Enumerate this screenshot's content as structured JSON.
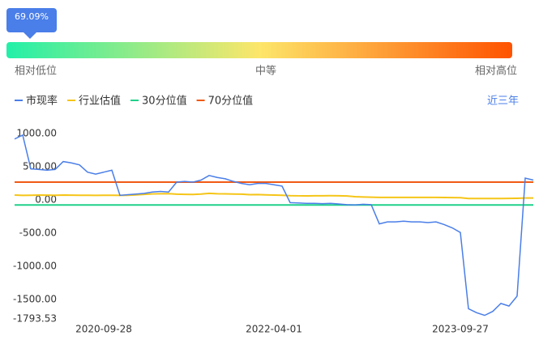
{
  "gauge": {
    "pointer_label": "69.09%",
    "low": "相对低位",
    "mid": "中等",
    "high": "相对高位"
  },
  "range_button": "近三年",
  "chart_data": {
    "type": "line",
    "categories": [
      null,
      null,
      null,
      null,
      null,
      null,
      null,
      null,
      null,
      null,
      null,
      "2020-09-28",
      null,
      null,
      null,
      null,
      null,
      null,
      null,
      null,
      null,
      null,
      null,
      null,
      null,
      null,
      null,
      null,
      null,
      null,
      null,
      null,
      "2022-04-01",
      null,
      null,
      null,
      null,
      null,
      null,
      null,
      null,
      null,
      null,
      null,
      null,
      null,
      null,
      null,
      null,
      null,
      null,
      null,
      null,
      null,
      null,
      "2023-09-27",
      null,
      null,
      null,
      null,
      null,
      null,
      null,
      null,
      null
    ],
    "series": [
      {
        "name": "市现率",
        "color": "#4a7ee8",
        "values": [
          920,
          980,
          470,
          460,
          450,
          460,
          580,
          560,
          530,
          420,
          390,
          420,
          450,
          70,
          80,
          90,
          100,
          120,
          130,
          120,
          270,
          280,
          270,
          300,
          370,
          340,
          320,
          280,
          250,
          230,
          250,
          250,
          230,
          210,
          -40,
          -45,
          -50,
          -50,
          -55,
          -50,
          -60,
          -70,
          -75,
          -65,
          -70,
          -360,
          -330,
          -330,
          -320,
          -330,
          -330,
          -340,
          -330,
          -370,
          -420,
          -490,
          -1640,
          -1700,
          -1740,
          -1680,
          -1560,
          -1600,
          -1450,
          330,
          300
        ]
      },
      {
        "name": "行业估值",
        "color": "#f5c518",
        "values": [
          75,
          70,
          72,
          74,
          73,
          72,
          74,
          73,
          72,
          71,
          70,
          72,
          71,
          70,
          72,
          78,
          85,
          92,
          95,
          96,
          88,
          85,
          84,
          90,
          100,
          95,
          93,
          90,
          88,
          80,
          82,
          78,
          75,
          72,
          65,
          63,
          62,
          63,
          64,
          65,
          64,
          60,
          50,
          45,
          42,
          40,
          40,
          40,
          40,
          40,
          40,
          40,
          40,
          38,
          36,
          35,
          22,
          22,
          22,
          22,
          22,
          24,
          26,
          30,
          30
        ]
      },
      {
        "name": "30分位值",
        "color": "#1fd18a",
        "values": [
          -75,
          -75,
          -75,
          -75,
          -75,
          -75,
          -75,
          -75,
          -75,
          -75,
          -75,
          -75,
          -75,
          -75,
          -75,
          -75,
          -75,
          -75,
          -75,
          -75,
          -75,
          -75,
          -75,
          -75,
          -75,
          -75,
          -75,
          -75,
          -75,
          -75,
          -75,
          -75,
          -75,
          -75,
          -75,
          -75,
          -75,
          -75,
          -75,
          -75,
          -75,
          -75,
          -75,
          -75,
          -75,
          -75,
          -75,
          -75,
          -75,
          -75,
          -75,
          -75,
          -75,
          -75,
          -75,
          -75,
          -75,
          -75,
          -75,
          -75,
          -75,
          -75,
          -75,
          -75,
          -75
        ]
      },
      {
        "name": "70分位值",
        "color": "#f05a14",
        "values": [
          270,
          270,
          270,
          270,
          270,
          270,
          270,
          270,
          270,
          270,
          270,
          270,
          270,
          270,
          270,
          270,
          270,
          270,
          270,
          270,
          270,
          270,
          270,
          270,
          270,
          270,
          270,
          270,
          270,
          270,
          270,
          270,
          270,
          270,
          270,
          270,
          270,
          270,
          270,
          270,
          270,
          270,
          270,
          270,
          270,
          270,
          270,
          270,
          270,
          270,
          270,
          270,
          270,
          270,
          270,
          270,
          270,
          270,
          270,
          270,
          270,
          270,
          270,
          270,
          270
        ]
      }
    ],
    "ylim": [
      -1793.53,
      1100
    ],
    "yticks": [
      {
        "value": 1000,
        "label": "1000.00"
      },
      {
        "value": 500,
        "label": "500.00"
      },
      {
        "value": 0,
        "label": "0.00"
      },
      {
        "value": -500,
        "label": "-500.00"
      },
      {
        "value": -1000,
        "label": "-1000.00"
      },
      {
        "value": -1500,
        "label": "-1500.00"
      },
      {
        "value": -1793.53,
        "label": "-1793.53"
      }
    ],
    "grid": false
  }
}
